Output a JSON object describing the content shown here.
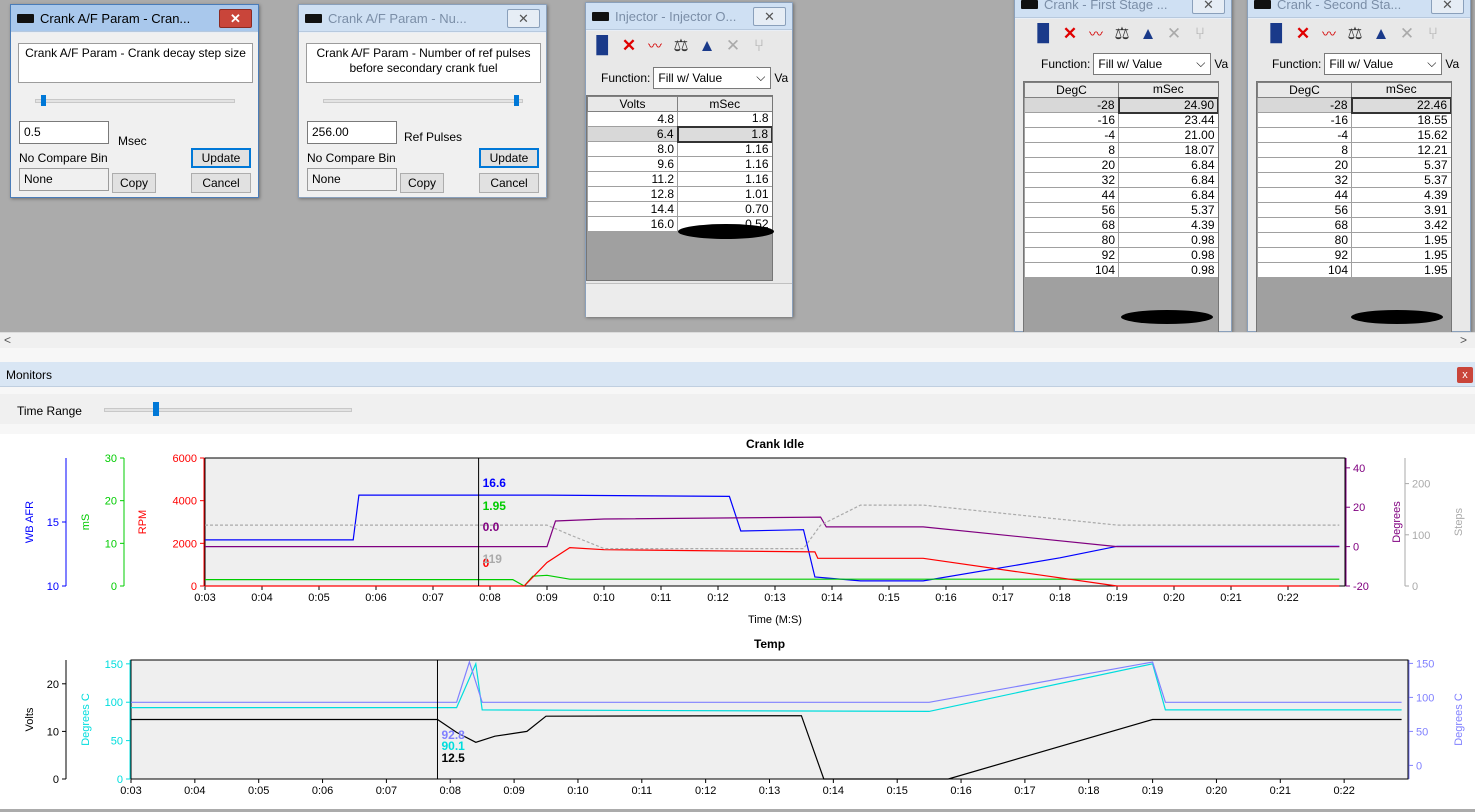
{
  "colors": {
    "afr": "#0000ff",
    "ms": "#00cc00",
    "rpm": "#ff0000",
    "degrees": "#800080",
    "steps": "#aaaaaa",
    "volts": "#000000",
    "coolant": "#00dddd",
    "air": "#8080ff"
  },
  "dialog1": {
    "title": "Crank A/F Param - Cran...",
    "description": "Crank A/F Param - Crank decay step size",
    "slider_fraction": 0.03,
    "value": "0.5",
    "unit": "Msec",
    "compare_label": "No Compare Bin",
    "compare_value": "None",
    "copy_label": "Copy",
    "update_label": "Update",
    "cancel_label": "Cancel",
    "close_glyph": "✕"
  },
  "dialog2": {
    "title": "Crank A/F Param - Nu...",
    "description": "Crank A/F Param - Number of ref pulses before secondary crank fuel",
    "slider_fraction": 0.98,
    "value": "256.00",
    "unit": "Ref Pulses",
    "compare_label": "No Compare Bin",
    "compare_value": "None",
    "copy_label": "Copy",
    "update_label": "Update",
    "cancel_label": "Cancel",
    "close_glyph": "✕"
  },
  "injector": {
    "title": "Injector - Injector O...",
    "function_label": "Function:",
    "function_value": "Fill w/ Value",
    "extra_label": "Va",
    "col_key": "Volts",
    "col_val": "mSec",
    "rows": [
      {
        "k": "4.8",
        "v": "1.8"
      },
      {
        "k": "6.4",
        "v": "1.8"
      },
      {
        "k": "8.0",
        "v": "1.16"
      },
      {
        "k": "9.6",
        "v": "1.16"
      },
      {
        "k": "11.2",
        "v": "1.16"
      },
      {
        "k": "12.8",
        "v": "1.01"
      },
      {
        "k": "14.4",
        "v": "0.70"
      },
      {
        "k": "16.0",
        "v": "0.52"
      }
    ],
    "close_glyph": "✕"
  },
  "first_stage": {
    "title": "Crank - First Stage ...",
    "function_label": "Function:",
    "function_value": "Fill w/ Value",
    "extra_label": "Va",
    "col_key": "DegC",
    "col_val": "mSec",
    "rows": [
      {
        "k": "-28",
        "v": "24.90"
      },
      {
        "k": "-16",
        "v": "23.44"
      },
      {
        "k": "-4",
        "v": "21.00"
      },
      {
        "k": "8",
        "v": "18.07"
      },
      {
        "k": "20",
        "v": "6.84"
      },
      {
        "k": "32",
        "v": "6.84"
      },
      {
        "k": "44",
        "v": "6.84"
      },
      {
        "k": "56",
        "v": "5.37"
      },
      {
        "k": "68",
        "v": "4.39"
      },
      {
        "k": "80",
        "v": "0.98"
      },
      {
        "k": "92",
        "v": "0.98"
      },
      {
        "k": "104",
        "v": "0.98"
      }
    ],
    "close_glyph": "✕"
  },
  "second_stage": {
    "title": "Crank - Second Sta...",
    "function_label": "Function:",
    "function_value": "Fill w/ Value",
    "extra_label": "Va",
    "col_key": "DegC",
    "col_val": "mSec",
    "rows": [
      {
        "k": "-28",
        "v": "22.46"
      },
      {
        "k": "-16",
        "v": "18.55"
      },
      {
        "k": "-4",
        "v": "15.62"
      },
      {
        "k": "8",
        "v": "12.21"
      },
      {
        "k": "20",
        "v": "5.37"
      },
      {
        "k": "32",
        "v": "5.37"
      },
      {
        "k": "44",
        "v": "4.39"
      },
      {
        "k": "56",
        "v": "3.91"
      },
      {
        "k": "68",
        "v": "3.42"
      },
      {
        "k": "80",
        "v": "1.95"
      },
      {
        "k": "92",
        "v": "1.95"
      },
      {
        "k": "104",
        "v": "1.95"
      }
    ],
    "close_glyph": "✕"
  },
  "hscroll": {
    "left_arrow": "<",
    "right_arrow": ">"
  },
  "monitors": {
    "title": "Monitors",
    "close_glyph": "x",
    "time_range_label": "Time Range",
    "time_range_fraction": 0.2
  },
  "chart_data": [
    {
      "type": "line",
      "title": "Crank Idle",
      "xlabel": "Time (M:S)",
      "x_ticks": [
        "0:03",
        "0:04",
        "0:05",
        "0:06",
        "0:07",
        "0:08",
        "0:09",
        "0:10",
        "0:11",
        "0:12",
        "0:13",
        "0:14",
        "0:15",
        "0:16",
        "0:17",
        "0:18",
        "0:19",
        "0:20",
        "0:21",
        "0:22"
      ],
      "xlim": [
        3,
        23
      ],
      "cursor_x": 7.8,
      "axes": [
        {
          "label": "WB AFR",
          "ticks": [
            "10",
            "15"
          ],
          "ylim": [
            10,
            20
          ],
          "color": "#0000ff"
        },
        {
          "label": "mS",
          "ticks": [
            "0",
            "10",
            "20",
            "30"
          ],
          "ylim": [
            0,
            30
          ],
          "color": "#00cc00"
        },
        {
          "label": "RPM",
          "ticks": [
            "0",
            "2000",
            "4000",
            "6000"
          ],
          "ylim": [
            0,
            6000
          ],
          "color": "#ff0000"
        },
        {
          "label": "Degrees",
          "ticks": [
            "-20",
            "0",
            "20",
            "40"
          ],
          "ylim": [
            -20,
            45
          ],
          "color": "#800080"
        },
        {
          "label": "Steps",
          "ticks": [
            "0",
            "100",
            "200"
          ],
          "ylim": [
            0,
            250
          ],
          "color": "#aaaaaa"
        }
      ],
      "series": [
        {
          "axis": 0,
          "color": "#0000ff",
          "cursor_value": "16.6",
          "points": [
            [
              3,
              13.6
            ],
            [
              5.6,
              13.6
            ],
            [
              5.7,
              17.1
            ],
            [
              9.0,
              17.1
            ],
            [
              12.2,
              17.0
            ],
            [
              12.4,
              14.3
            ],
            [
              13.5,
              14.4
            ],
            [
              13.7,
              10.7
            ],
            [
              14.5,
              10.4
            ],
            [
              15.6,
              10.4
            ],
            [
              18.0,
              12.2
            ],
            [
              19.0,
              13.1
            ],
            [
              22.9,
              13.1
            ]
          ]
        },
        {
          "axis": 1,
          "color": "#00cc00",
          "cursor_value": "1.95",
          "points": [
            [
              3,
              1.5
            ],
            [
              8.4,
              1.5
            ],
            [
              8.6,
              0
            ],
            [
              8.75,
              2.3
            ],
            [
              9.0,
              2.5
            ],
            [
              9.4,
              1.6
            ],
            [
              22.9,
              1.6
            ]
          ]
        },
        {
          "axis": 2,
          "color": "#ff0000",
          "cursor_value": "0",
          "points": [
            [
              3,
              0
            ],
            [
              8.6,
              0
            ],
            [
              9.0,
              1100
            ],
            [
              9.4,
              1800
            ],
            [
              10.0,
              1700
            ],
            [
              13.7,
              1600
            ],
            [
              13.75,
              1300
            ],
            [
              15.6,
              1300
            ],
            [
              19.0,
              0
            ],
            [
              22.9,
              0
            ]
          ]
        },
        {
          "axis": 3,
          "color": "#800080",
          "cursor_value": "0.0",
          "points": [
            [
              3,
              0
            ],
            [
              9.0,
              0
            ],
            [
              9.15,
              13
            ],
            [
              10.0,
              14
            ],
            [
              13.8,
              15
            ],
            [
              13.9,
              10
            ],
            [
              15.6,
              10
            ],
            [
              19.0,
              0
            ],
            [
              22.9,
              0
            ]
          ]
        },
        {
          "axis": 4,
          "color": "#aaaaaa",
          "cursor_value": "119",
          "points": [
            [
              3,
              119
            ],
            [
              9.0,
              119
            ],
            [
              9.4,
              100
            ],
            [
              10.0,
              73
            ],
            [
              13.5,
              73
            ],
            [
              13.8,
              119
            ],
            [
              14.5,
              158
            ],
            [
              15.6,
              158
            ],
            [
              19.0,
              119
            ],
            [
              22.9,
              119
            ]
          ]
        }
      ]
    },
    {
      "type": "line",
      "title": "Temp",
      "x_ticks": [
        "0:03",
        "0:04",
        "0:05",
        "0:06",
        "0:07",
        "0:08",
        "0:09",
        "0:10",
        "0:11",
        "0:12",
        "0:13",
        "0:14",
        "0:15",
        "0:16",
        "0:17",
        "0:18",
        "0:19",
        "0:20",
        "0:21",
        "0:22"
      ],
      "xlim": [
        3,
        23
      ],
      "cursor_x": 7.8,
      "axes": [
        {
          "label": "Volts",
          "ticks": [
            "0",
            "10",
            "20"
          ],
          "ylim": [
            0,
            25
          ],
          "color": "#000000"
        },
        {
          "label": "Degrees C",
          "ticks": [
            "0",
            "50",
            "100",
            "150"
          ],
          "ylim": [
            0,
            155
          ],
          "color": "#00dddd"
        },
        {
          "label": "Degrees C",
          "ticks": [
            "0",
            "50",
            "100",
            "150"
          ],
          "ylim": [
            -20,
            155
          ],
          "color": "#8080ff"
        }
      ],
      "series": [
        {
          "axis": 0,
          "color": "#000000",
          "cursor_value": "12.5",
          "points": [
            [
              3,
              12.5
            ],
            [
              7.8,
              12.5
            ],
            [
              8.1,
              9.8
            ],
            [
              8.4,
              7.7
            ],
            [
              8.7,
              9.0
            ],
            [
              9.2,
              10.0
            ],
            [
              9.5,
              13.2
            ],
            [
              13.5,
              13.3
            ],
            [
              13.85,
              0
            ],
            [
              15.8,
              0
            ],
            [
              19.0,
              12.5
            ],
            [
              22.9,
              12.5
            ]
          ]
        },
        {
          "axis": 1,
          "color": "#00dddd",
          "cursor_value": "90.1",
          "points": [
            [
              3,
              93
            ],
            [
              8.1,
              93
            ],
            [
              8.4,
              150
            ],
            [
              8.5,
              90
            ],
            [
              15.5,
              88
            ],
            [
              19.0,
              150
            ],
            [
              19.2,
              90
            ],
            [
              22.9,
              90
            ]
          ]
        },
        {
          "axis": 2,
          "color": "#8080ff",
          "cursor_value": "92.8",
          "points": [
            [
              3,
              92.8
            ],
            [
              8.1,
              92.8
            ],
            [
              8.3,
              152
            ],
            [
              8.5,
              92.8
            ],
            [
              15.5,
              92.8
            ],
            [
              19.0,
              152
            ],
            [
              19.2,
              92.8
            ],
            [
              22.9,
              92.8
            ]
          ]
        }
      ]
    }
  ]
}
